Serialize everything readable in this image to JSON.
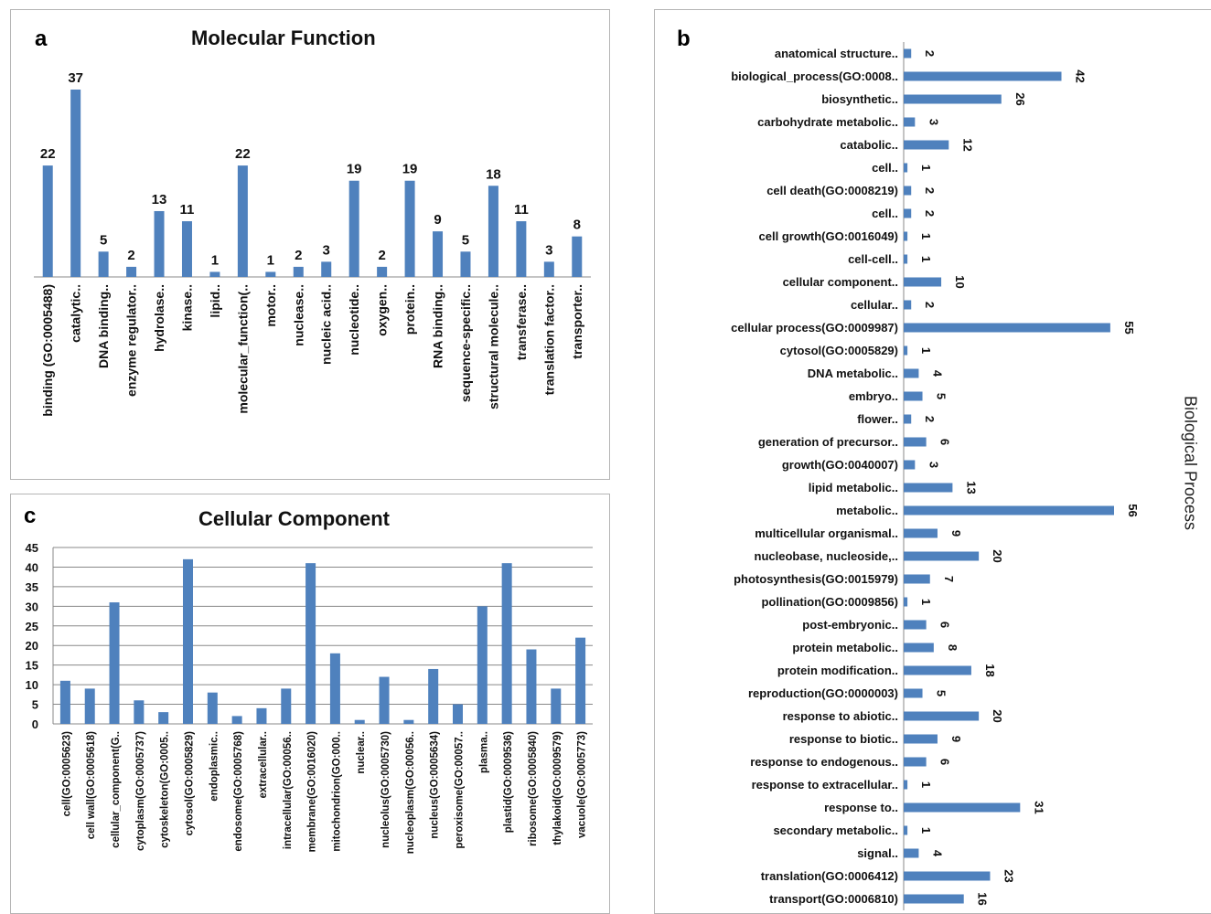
{
  "colors": {
    "bar": "#4f81bd",
    "grid": "#888888",
    "axis": "#888888",
    "text": "#111111"
  },
  "chart_data": [
    {
      "id": "a",
      "letter": "a",
      "type": "bar",
      "orientation": "vertical",
      "title": "Molecular Function",
      "categories": [
        "binding (GO:0005488)",
        "catalytic..",
        "DNA binding..",
        "enzyme regulator..",
        "hydrolase..",
        "kinase..",
        "lipid..",
        "molecular_function(..",
        "motor..",
        "nuclease..",
        "nucleic acid..",
        "nucleotide..",
        "oxygen..",
        "protein..",
        "RNA binding..",
        "sequence-specific..",
        "structural molecule..",
        "transferase..",
        "translation factor..",
        "transporter.."
      ],
      "values": [
        22,
        37,
        5,
        2,
        13,
        11,
        1,
        22,
        1,
        2,
        3,
        19,
        2,
        19,
        9,
        5,
        18,
        11,
        3,
        8
      ],
      "data_labels": true,
      "grid": false
    },
    {
      "id": "b",
      "letter": "b",
      "type": "bar",
      "orientation": "horizontal",
      "ylabel": "Biological Process",
      "categories": [
        "anatomical structure..",
        "biological_process(GO:0008..",
        "biosynthetic..",
        "carbohydrate metabolic..",
        "catabolic..",
        "cell..",
        "cell death(GO:0008219)",
        "cell..",
        "cell growth(GO:0016049)",
        "cell-cell..",
        "cellular component..",
        "cellular..",
        "cellular process(GO:0009987)",
        "cytosol(GO:0005829)",
        "DNA metabolic..",
        "embryo..",
        "flower..",
        "generation of precursor..",
        "growth(GO:0040007)",
        "lipid metabolic..",
        "metabolic..",
        "multicellular organismal..",
        "nucleobase, nucleoside,..",
        "photosynthesis(GO:0015979)",
        "pollination(GO:0009856)",
        "post-embryonic..",
        "protein metabolic..",
        "protein modification..",
        "reproduction(GO:0000003)",
        "response to abiotic..",
        "response to biotic..",
        "response to endogenous..",
        "response to extracellular..",
        "response to..",
        "secondary metabolic..",
        "signal..",
        "translation(GO:0006412)",
        "transport(GO:0006810)"
      ],
      "values": [
        2,
        42,
        26,
        3,
        12,
        1,
        2,
        2,
        1,
        1,
        10,
        2,
        55,
        1,
        4,
        5,
        2,
        6,
        3,
        13,
        56,
        9,
        20,
        7,
        1,
        6,
        8,
        18,
        5,
        20,
        9,
        6,
        1,
        31,
        1,
        4,
        23,
        16
      ],
      "data_labels": true,
      "grid": false
    },
    {
      "id": "c",
      "letter": "c",
      "type": "bar",
      "orientation": "vertical",
      "title": "Cellular Component",
      "categories": [
        "cell(GO:0005623)",
        "cell wall(GO:0005618)",
        "cellular_component(G..",
        "cytoplasm(GO:0005737)",
        "cytoskeleton(GO:0005..",
        "cytosol(GO:0005829)",
        "endoplasmic..",
        "endosome(GO:0005768)",
        "extracellular..",
        "intracellular(GO:00056..",
        "membrane(GO:0016020)",
        "mitochondrion(GO:000..",
        "nuclear..",
        "nucleolus(GO:0005730)",
        "nucleoplasm(GO:00056..",
        "nucleus(GO:0005634)",
        "peroxisome(GO:00057..",
        "plasma..",
        "plastid(GO:0009536)",
        "ribosome(GO:0005840)",
        "thylakoid(GO:0009579)",
        "vacuole(GO:0005773)"
      ],
      "values": [
        11,
        9,
        31,
        6,
        3,
        42,
        8,
        2,
        4,
        9,
        41,
        18,
        1,
        12,
        1,
        14,
        5,
        30,
        41,
        19,
        9,
        22
      ],
      "yticks": [
        "0",
        "5",
        "10",
        "15",
        "20",
        "25",
        "30",
        "35",
        "40",
        "45"
      ],
      "ylim": [
        0,
        45
      ],
      "grid": true
    }
  ]
}
